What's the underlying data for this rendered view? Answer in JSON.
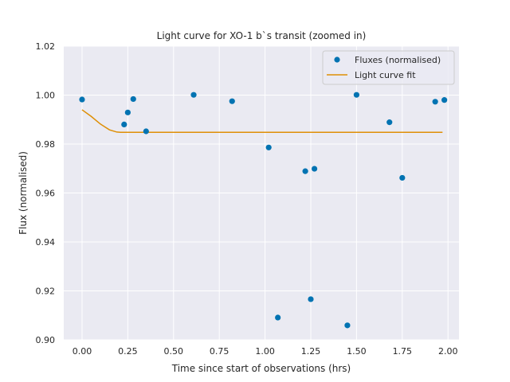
{
  "chart_data": {
    "type": "scatter",
    "title": "Light curve for XO-1 b`s transit (zoomed in)",
    "xlabel": "Time since start of observations (hrs)",
    "ylabel": "Flux (normalised)",
    "xlim": [
      -0.1,
      2.06
    ],
    "ylim": [
      0.9,
      1.02
    ],
    "xticks": [
      0.0,
      0.25,
      0.5,
      0.75,
      1.0,
      1.25,
      1.5,
      1.75,
      2.0
    ],
    "xtick_labels": [
      "0.00",
      "0.25",
      "0.50",
      "0.75",
      "1.00",
      "1.25",
      "1.50",
      "1.75",
      "2.00"
    ],
    "yticks": [
      0.9,
      0.92,
      0.94,
      0.96,
      0.98,
      1.0,
      1.02
    ],
    "ytick_labels": [
      "0.90",
      "0.92",
      "0.94",
      "0.96",
      "0.98",
      "1.00",
      "1.02"
    ],
    "grid": true,
    "legend_position": "top-right",
    "background_color": "#eaeaf2",
    "series": [
      {
        "name": "Fluxes (normalised)",
        "kind": "scatter",
        "color": "#0173b2",
        "x": [
          0.0,
          0.23,
          0.25,
          0.28,
          0.35,
          0.61,
          0.82,
          1.02,
          1.07,
          1.22,
          1.25,
          1.27,
          1.45,
          1.5,
          1.68,
          1.75,
          1.93,
          1.98
        ],
        "y": [
          0.9982,
          0.988,
          0.9929,
          0.9984,
          0.9852,
          1.0001,
          0.9975,
          0.9786,
          0.9091,
          0.9689,
          0.9166,
          0.9699,
          0.9059,
          1.0001,
          0.9889,
          0.9662,
          0.9973,
          0.998
        ]
      },
      {
        "name": "Light curve fit",
        "kind": "line",
        "color": "#de8f05",
        "x": [
          0.0,
          0.05,
          0.1,
          0.15,
          0.19,
          0.21,
          0.25,
          0.5,
          1.0,
          1.5,
          1.97
        ],
        "y": [
          0.994,
          0.9913,
          0.9882,
          0.9858,
          0.9849,
          0.9848,
          0.9848,
          0.9848,
          0.9848,
          0.9848,
          0.9848
        ]
      }
    ]
  }
}
